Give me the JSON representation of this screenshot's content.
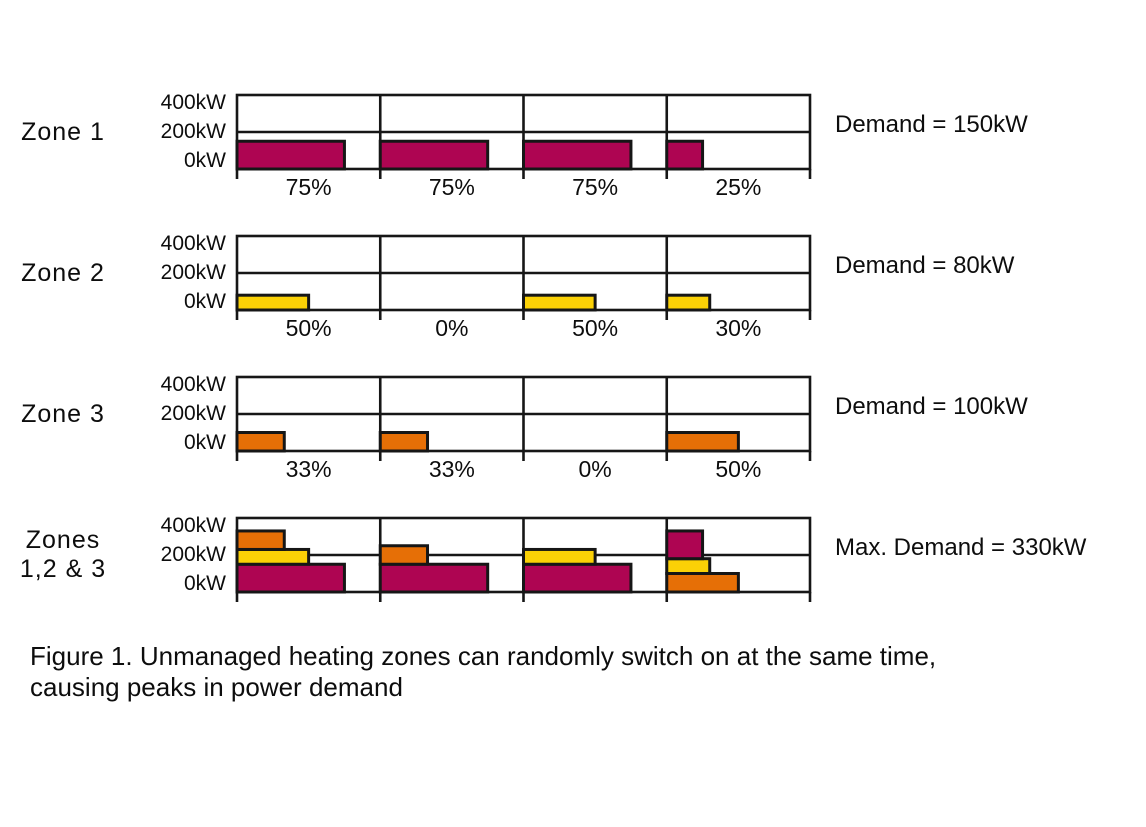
{
  "colors": {
    "zone1": "#AE0552",
    "zone2": "#FBD106",
    "zone3": "#E66F06",
    "line": "#161616",
    "background": "#FFFFFF"
  },
  "chart_data": {
    "type": "bar",
    "ylim": [
      0,
      400
    ],
    "y_unit": "kW",
    "ytick_labels": [
      "400kW",
      "200kW",
      "0kW"
    ],
    "grid": "200kW horizontal gridline; 4 equal time segments per panel",
    "panels": [
      {
        "row_label_lines": [
          "Zone 1"
        ],
        "right_label": "Demand = 150kW",
        "segments": [
          {
            "label": "75%",
            "bars": [
              {
                "zone": "zone1",
                "start_kw": 0,
                "end_kw": 150,
                "width_pct": 75
              }
            ]
          },
          {
            "label": "75%",
            "bars": [
              {
                "zone": "zone1",
                "start_kw": 0,
                "end_kw": 150,
                "width_pct": 75
              }
            ]
          },
          {
            "label": "75%",
            "bars": [
              {
                "zone": "zone1",
                "start_kw": 0,
                "end_kw": 150,
                "width_pct": 75
              }
            ]
          },
          {
            "label": "25%",
            "bars": [
              {
                "zone": "zone1",
                "start_kw": 0,
                "end_kw": 150,
                "width_pct": 25
              }
            ]
          }
        ]
      },
      {
        "row_label_lines": [
          "Zone 2"
        ],
        "right_label": "Demand = 80kW",
        "segments": [
          {
            "label": "50%",
            "bars": [
              {
                "zone": "zone2",
                "start_kw": 0,
                "end_kw": 80,
                "width_pct": 50
              }
            ]
          },
          {
            "label": "0%",
            "bars": []
          },
          {
            "label": "50%",
            "bars": [
              {
                "zone": "zone2",
                "start_kw": 0,
                "end_kw": 80,
                "width_pct": 50
              }
            ]
          },
          {
            "label": "30%",
            "bars": [
              {
                "zone": "zone2",
                "start_kw": 0,
                "end_kw": 80,
                "width_pct": 30
              }
            ]
          }
        ]
      },
      {
        "row_label_lines": [
          "Zone 3"
        ],
        "right_label": "Demand = 100kW",
        "segments": [
          {
            "label": "33%",
            "bars": [
              {
                "zone": "zone3",
                "start_kw": 0,
                "end_kw": 100,
                "width_pct": 33
              }
            ]
          },
          {
            "label": "33%",
            "bars": [
              {
                "zone": "zone3",
                "start_kw": 0,
                "end_kw": 100,
                "width_pct": 33
              }
            ]
          },
          {
            "label": "0%",
            "bars": []
          },
          {
            "label": "50%",
            "bars": [
              {
                "zone": "zone3",
                "start_kw": 0,
                "end_kw": 100,
                "width_pct": 50
              }
            ]
          }
        ]
      },
      {
        "row_label_lines": [
          "Zones",
          "1,2 & 3"
        ],
        "right_label": "Max. Demand = 330kW",
        "segments": [
          {
            "bars": [
              {
                "zone": "zone1",
                "start_kw": 0,
                "end_kw": 150,
                "width_pct": 75
              },
              {
                "zone": "zone2",
                "start_kw": 150,
                "end_kw": 230,
                "width_pct": 50
              },
              {
                "zone": "zone3",
                "start_kw": 230,
                "end_kw": 330,
                "width_pct": 33
              }
            ]
          },
          {
            "bars": [
              {
                "zone": "zone1",
                "start_kw": 0,
                "end_kw": 150,
                "width_pct": 75
              },
              {
                "zone": "zone3",
                "start_kw": 150,
                "end_kw": 250,
                "width_pct": 33
              }
            ]
          },
          {
            "bars": [
              {
                "zone": "zone1",
                "start_kw": 0,
                "end_kw": 150,
                "width_pct": 75
              },
              {
                "zone": "zone2",
                "start_kw": 150,
                "end_kw": 230,
                "width_pct": 50
              }
            ]
          },
          {
            "bars": [
              {
                "zone": "zone3",
                "start_kw": 0,
                "end_kw": 100,
                "width_pct": 50
              },
              {
                "zone": "zone2",
                "start_kw": 100,
                "end_kw": 180,
                "width_pct": 30
              },
              {
                "zone": "zone1",
                "start_kw": 180,
                "end_kw": 330,
                "width_pct": 25
              }
            ]
          }
        ]
      }
    ]
  },
  "caption": {
    "lines": [
      "Figure 1. Unmanaged heating zones can randomly switch on at the same time,",
      "causing peaks in power demand"
    ]
  }
}
